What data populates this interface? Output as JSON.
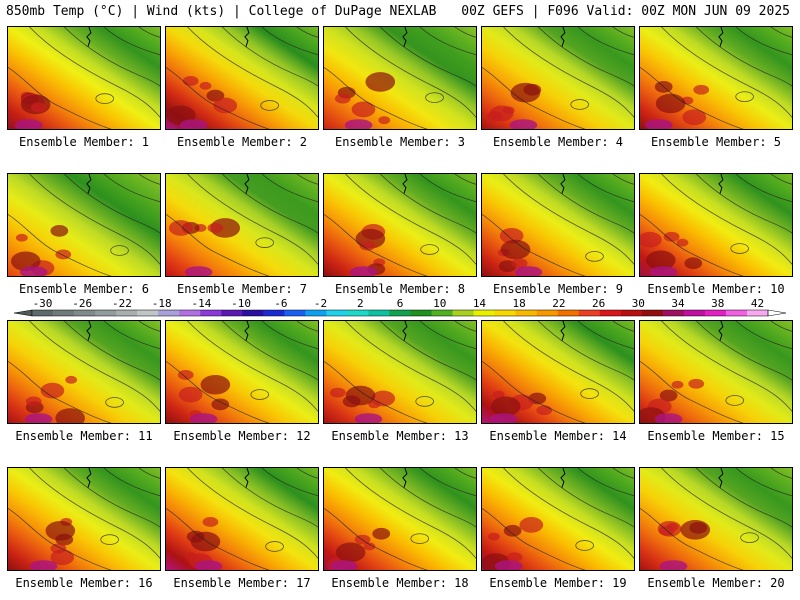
{
  "header": {
    "left": "850mb Temp (°C) | Wind (kts) | College of DuPage NEXLAB",
    "right": "00Z GEFS | F096 Valid: 00Z MON JUN 09 2025"
  },
  "members": [
    {
      "label": "Ensemble Member: 1",
      "warmth": 0.62
    },
    {
      "label": "Ensemble Member: 2",
      "warmth": 0.75
    },
    {
      "label": "Ensemble Member: 3",
      "warmth": 0.45
    },
    {
      "label": "Ensemble Member: 4",
      "warmth": 0.55
    },
    {
      "label": "Ensemble Member: 5",
      "warmth": 0.6
    },
    {
      "label": "Ensemble Member: 6",
      "warmth": 0.35
    },
    {
      "label": "Ensemble Member: 7",
      "warmth": 0.5
    },
    {
      "label": "Ensemble Member: 8",
      "warmth": 0.6
    },
    {
      "label": "Ensemble Member: 9",
      "warmth": 0.6
    },
    {
      "label": "Ensemble Member: 10",
      "warmth": 0.65
    },
    {
      "label": "Ensemble Member: 11",
      "warmth": 0.55
    },
    {
      "label": "Ensemble Member: 12",
      "warmth": 0.6
    },
    {
      "label": "Ensemble Member: 13",
      "warmth": 0.55
    },
    {
      "label": "Ensemble Member: 14",
      "warmth": 0.7
    },
    {
      "label": "Ensemble Member: 15",
      "warmth": 0.55
    },
    {
      "label": "Ensemble Member: 16",
      "warmth": 0.6
    },
    {
      "label": "Ensemble Member: 17",
      "warmth": 0.7
    },
    {
      "label": "Ensemble Member: 18",
      "warmth": 0.65
    },
    {
      "label": "Ensemble Member: 19",
      "warmth": 0.65
    },
    {
      "label": "Ensemble Member: 20",
      "warmth": 0.55
    }
  ],
  "colorbar": {
    "labels": [
      "-30",
      "-26",
      "-22",
      "-18",
      "-14",
      "-10",
      "-6",
      "-2",
      "2",
      "6",
      "10",
      "14",
      "18",
      "22",
      "26",
      "30",
      "34",
      "38",
      "42"
    ],
    "colors": [
      "#5f6a6a",
      "#707a7a",
      "#808a8a",
      "#929c9c",
      "#a8afaf",
      "#c0c6c6",
      "#a8a0d8",
      "#b070e0",
      "#8a3ad8",
      "#5a1ab0",
      "#2a10a0",
      "#1a2ad0",
      "#1a60f0",
      "#10a0f0",
      "#20d0e8",
      "#20d8c8",
      "#10c0a0",
      "#10a050",
      "#209020",
      "#50b020",
      "#a8d020",
      "#e8f000",
      "#f8d800",
      "#f8b800",
      "#f89800",
      "#f07000",
      "#e84020",
      "#d81818",
      "#b81010",
      "#901010",
      "#a01060",
      "#c010a0",
      "#e020c0",
      "#f060e0",
      "#f8a8f0"
    ]
  }
}
